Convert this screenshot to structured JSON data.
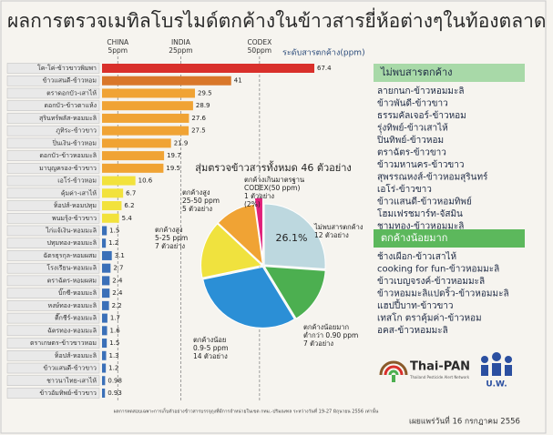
{
  "title": "ผลการตรวจเมทิลโบรไมด์ตกค้างในข้าวสารยี่ห้อต่างๆในท้องตลาด",
  "chart_data": [
    {
      "type": "bar",
      "orientation": "horizontal",
      "axis_label": "ระดับสารตกค้าง(ppm)",
      "categories": [
        "โค-โค่-ข้าวขาวพิมพา",
        "ข้าวแสนดี-ข้าวหอม",
        "ตราดอกบัว-เสาไห้",
        "ดอกบัว-ข้าวตาแห้ง",
        "สุรินทร์พลัส-หอมมะลิ",
        "ภูทิระ-ข้าวขาว",
        "ปิ่นเงิน-ข้าวหอม",
        "ดอกบัว-ข้าวหอมมะลิ",
        "มาบุญครอง-ข้าวขาว",
        "เอโร่-ข้าวหอม",
        "คุ้มค่า-เสาไห้",
        "ท็อปส์-หอมปทุม",
        "พนมรุ้ง-ข้าวขาว",
        "ไก่แจ้เงิน-หอมมะลิ",
        "ปทุมทอง-หอมมะลิ",
        "ฉัตรธุรกุล-หอมผสม",
        "โรงเรียน-หอมมะลิ",
        "ตราฉัตร-หอมผสม",
        "บิ๊กซี-หอมมะลิ",
        "หงษ์ทอง-หอมมะลิ",
        "ตี๊กชีร์-หอมมะลิ",
        "ฉัตรทอง-หอมมะลิ",
        "ตราเกษตร-ข้าวขาวหอม",
        "ท็อปส์-หอมมะลิ",
        "ข้าวแสนดี-ข้าวขาว",
        "ชาวนาไทย-เสาไห้",
        "ข้าวอัมทิพย์-ข้าวขาว"
      ],
      "values": [
        67.4,
        41,
        29.5,
        28.9,
        27.6,
        27.5,
        21.9,
        19.7,
        19.5,
        10.6,
        6.7,
        6.2,
        5.4,
        1.5,
        1.2,
        3.1,
        2.7,
        2.4,
        2.4,
        2.2,
        1.7,
        1.6,
        1.5,
        1.3,
        1.2,
        0.98,
        0.93
      ],
      "colors": [
        "#d9302b",
        "#d9772a",
        "#f0a334",
        "#f0a334",
        "#f0a334",
        "#f0a334",
        "#f0a334",
        "#f0a334",
        "#f0a334",
        "#f2e23c",
        "#f2e23c",
        "#f2e23c",
        "#f2e23c",
        "#3b70b8",
        "#3b70b8",
        "#3b70b8",
        "#3b70b8",
        "#3b70b8",
        "#3b70b8",
        "#3b70b8",
        "#3b70b8",
        "#3b70b8",
        "#3b70b8",
        "#3b70b8",
        "#3b70b8",
        "#3b70b8",
        "#3b70b8"
      ],
      "xlim": [
        0,
        70
      ],
      "reference_lines": [
        {
          "name": "CHINA",
          "value": 5,
          "label": "5ppm"
        },
        {
          "name": "INDIA",
          "value": 25,
          "label": "25ppm"
        },
        {
          "name": "CODEX",
          "value": 50,
          "label": "50ppm"
        }
      ]
    },
    {
      "type": "pie",
      "title": "สุ่มตรวจข้าวสารทั้งหมด 46 ตัวอย่าง",
      "values": [
        12,
        7,
        14,
        7,
        5,
        1
      ],
      "colors": [
        "#bdd8df",
        "#4caf50",
        "#2b8fd6",
        "#f0e23e",
        "#f0a334",
        "#e0207a"
      ],
      "labels": [
        [
          "ไม่พบสารตกค้าง",
          "12 ตัวอย่าง"
        ],
        [
          "ตกค้างน้อยมาก",
          "ต่ำกว่า 0.90 ppm",
          "7 ตัวอย่าง"
        ],
        [
          "ตกค้างน้อย",
          "0.9-5 ppm",
          "14 ตัวอย่าง"
        ],
        [
          "ตกค้างสูง",
          "5-25 ppm",
          "7 ตัวอย่าง"
        ],
        [
          "ตกค้างสูง",
          "25-50 ppm",
          "5 ตัวอย่าง"
        ],
        [
          "ตกค้างเกินมาตรฐาน",
          "CODEX(50 ppm)",
          "1 ตัวอย่าง",
          "(2%)"
        ]
      ],
      "percent_label": "26.1%"
    }
  ],
  "lists": [
    {
      "title": "ไม่พบสารตกค้าง",
      "items": [
        "ลายกนก-ข้าวหอมมะลิ",
        "ข้าวพันดี-ข้าวขาว",
        "ธรรมคัลเจอร์-ข้าวหอม",
        "รุ่งทิพย์-ข้าวเสาไห้",
        "ปิ่นทิพย์-ข้าวหอม",
        "ตราฉัตร-ข้าวขาว",
        "ข้าวมหานคร-ข้าวขาว",
        "สุพรรณหงส์-ข้าวหอมสุรินทร์",
        "เอโร่-ข้าวขาว",
        "ข้าวแสนดี-ข้าวหอมทิพย์",
        "โฮมเฟรชมาร์ท-จัสมิน",
        "ชามทอง-ข้าวหอมมะลิ"
      ]
    },
    {
      "title": "ตกค้างน้อยมาก",
      "items": [
        "ช้างเผือก-ข้าวเสาไห้",
        "cooking for fun-ข้าวหอมมะลิ",
        "ข้าวเบญจรงค์-ข้าวหอมมะลิ",
        "ข้าวหอมมะลิแปดริ้ว-ข้าวหอมมะลิ",
        "แฮปปี้บาท-ข้าวขาว",
        "เทสโก ตราคุ้มค่า-ข้าวหอม",
        "อคส-ข้าวหอมมะลิ"
      ]
    }
  ],
  "footer": {
    "logo_name": "Thai-PAN",
    "logo_subtitle": "Thailand Pesticide Alert Network",
    "logo2_name": "U.W.",
    "date": "เผยแพร่วันที่ 16 กรกฎาคม 2556",
    "note": "ผลการทดสอบเฉพาะการเก็บตัวอย่างข้าวสารบรรจุถุงที่มีการจำหน่ายในเขต กทม.-ปริมณฑล ระหว่างวันที่ 19-27 มิถุนายน 2556 เท่านั้น"
  }
}
